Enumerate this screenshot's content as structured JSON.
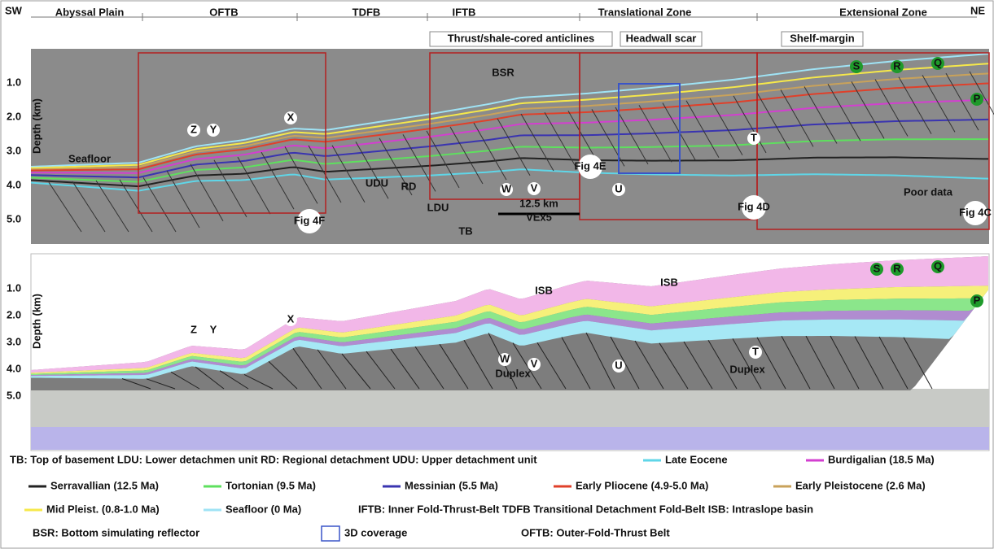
{
  "header": {
    "left": "SW",
    "right": "NE",
    "zones": [
      "Abyssal Plain",
      "OFTB",
      "TDFB",
      "IFTB",
      "Translational  Zone",
      "Extensional Zone"
    ]
  },
  "top_panel": {
    "y_axis_label": "Depth (km)",
    "depth_ticks": [
      "1.0",
      "2.0",
      "3.0",
      "4.0",
      "5.0"
    ],
    "callouts": [
      "Thrust/shale-cored anticlines",
      "Headwall scar",
      "Shelf-margin"
    ],
    "labels": [
      "BSR",
      "Seafloor",
      "UDU",
      "RD",
      "LDU",
      "TB",
      "Poor data",
      "12.5 km",
      "VEx5"
    ],
    "figure_refs": [
      "Fig 4F",
      "Fig 4E",
      "Fig 4D",
      "Fig 4C"
    ],
    "markers": [
      {
        "text": "Z",
        "marker": "white"
      },
      {
        "text": "Y",
        "marker": "white"
      },
      {
        "text": "X",
        "marker": "white"
      },
      {
        "text": "W",
        "marker": "white"
      },
      {
        "text": "V",
        "marker": "white"
      },
      {
        "text": "U",
        "marker": "white"
      },
      {
        "text": "T",
        "marker": "white"
      },
      {
        "text": "S",
        "marker": "green"
      },
      {
        "text": "R",
        "marker": "green"
      },
      {
        "text": "Q",
        "marker": "green"
      },
      {
        "text": "P",
        "marker": "green"
      }
    ]
  },
  "bottom_panel": {
    "y_axis_label": "Depth (km)",
    "depth_ticks": [
      "1.0",
      "2.0",
      "3.0",
      "4.0",
      "5.0"
    ],
    "labels": [
      "ISB",
      "ISB",
      "Duplex",
      "Duplex"
    ],
    "markers": [
      {
        "text": "Z",
        "marker": "white"
      },
      {
        "text": "Y",
        "marker": "white"
      },
      {
        "text": "X",
        "marker": "white"
      },
      {
        "text": "W",
        "marker": "white"
      },
      {
        "text": "V",
        "marker": "white"
      },
      {
        "text": "U",
        "marker": "white"
      },
      {
        "text": "T",
        "marker": "white"
      },
      {
        "text": "S",
        "marker": "green"
      },
      {
        "text": "R",
        "marker": "green"
      },
      {
        "text": "Q",
        "marker": "green"
      },
      {
        "text": "P",
        "marker": "green"
      }
    ]
  },
  "legend": {
    "rows": [
      [
        {
          "text": "TB: Top of basement LDU: Lower detachmen unit  RD: Regional detachment  UDU: Upper detachment unit"
        },
        {
          "text": "Late Eocene",
          "color": "#5fd6e8",
          "kind": "line"
        },
        {
          "text": "Burdigalian (18.5 Ma)",
          "color": "#d33fd0",
          "kind": "line"
        }
      ],
      [
        {
          "text": "Serravallian (12.5 Ma)",
          "color": "#222222",
          "kind": "line"
        },
        {
          "text": "Tortonian (9.5 Ma)",
          "color": "#5ee05e",
          "kind": "line"
        },
        {
          "text": "Messinian (5.5 Ma)",
          "color": "#3a34b0",
          "kind": "line"
        },
        {
          "text": "Early Pliocene (4.9-5.0 Ma)",
          "color": "#e0402a",
          "kind": "line"
        },
        {
          "text": "Early Pleistocene (2.6 Ma)",
          "color": "#c9a25a",
          "kind": "line"
        }
      ],
      [
        {
          "text": "Mid Pleist. (0.8-1.0 Ma)",
          "color": "#f6e84a",
          "kind": "line"
        },
        {
          "text": "Seafloor (0 Ma)",
          "color": "#9fe3f5",
          "kind": "line"
        },
        {
          "text": "IFTB: Inner Fold-Thrust-Belt    TDFB Transitional Detachment Fold-Belt    ISB: Intraslope basin"
        }
      ],
      [
        {
          "text": "BSR: Bottom simulating reflector"
        },
        {
          "text": "3D coverage",
          "color": "#3a55c8",
          "kind": "box"
        },
        {
          "text": "OFTB: Outer-Fold-Thrust Belt"
        }
      ]
    ]
  }
}
